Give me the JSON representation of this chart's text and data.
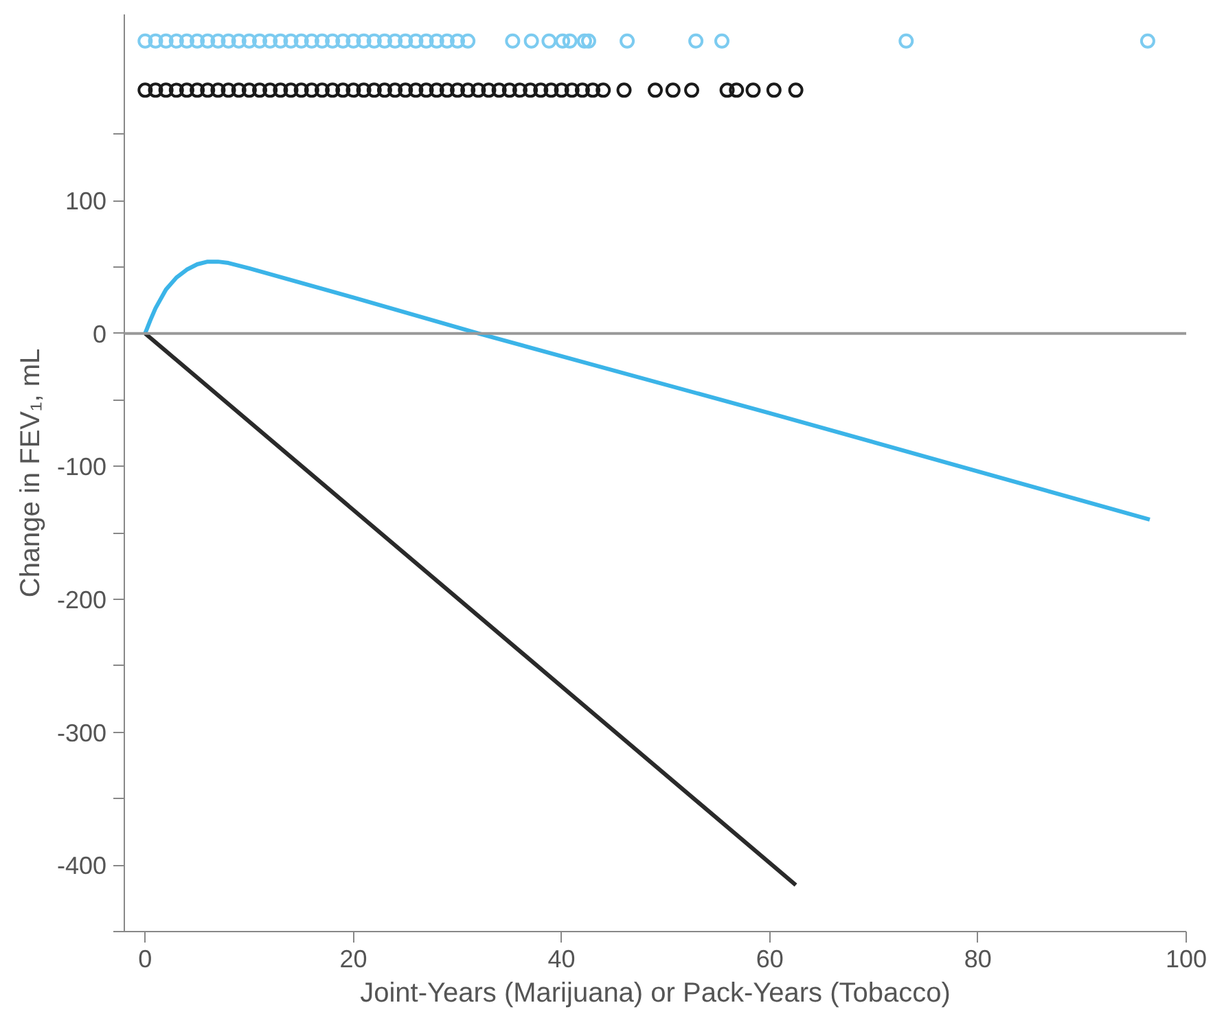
{
  "chart_data": {
    "type": "line",
    "xlabel": "Joint-Years (Marijuana) or Pack-Years (Tobacco)",
    "ylabel": "Change in FEV₁, mL",
    "xlim": [
      -2,
      100
    ],
    "xticks": [
      0,
      20,
      40,
      60,
      80,
      100
    ],
    "ylim": [
      -450,
      240
    ],
    "yticks": [
      {
        "value": -450,
        "label": null
      },
      -400,
      {
        "value": -350,
        "label": null
      },
      -300,
      {
        "value": -250,
        "label": null
      },
      -200,
      {
        "value": -150,
        "label": null
      },
      -100,
      {
        "value": -50,
        "label": null
      },
      0,
      {
        "value": 50,
        "label": null
      },
      100,
      {
        "value": 150,
        "label": null
      }
    ],
    "grid": false,
    "line_style": "solid",
    "ref_lines": [
      {
        "axis": "y",
        "value": 0,
        "color": "#999999"
      }
    ],
    "series": [
      {
        "type": "scatter",
        "marker": "circle",
        "color": "#7ccbf0",
        "x": [
          0,
          1,
          2,
          3,
          4,
          5,
          6,
          7,
          8,
          9,
          10,
          11,
          12,
          13,
          14,
          15,
          16,
          17,
          18,
          19,
          20,
          21,
          22,
          23,
          24,
          25,
          26,
          27,
          28,
          29,
          30,
          31,
          35.3,
          37.1,
          38.8,
          40.1,
          40.8,
          42.2,
          42.6,
          46.3,
          52.9,
          55.4,
          73.1,
          96.3
        ],
        "values": [
          220,
          220,
          220,
          220,
          220,
          220,
          220,
          220,
          220,
          220,
          220,
          220,
          220,
          220,
          220,
          220,
          220,
          220,
          220,
          220,
          220,
          220,
          220,
          220,
          220,
          220,
          220,
          220,
          220,
          220,
          220,
          220,
          220,
          220,
          220,
          220,
          220,
          220,
          220,
          220,
          220,
          220,
          220,
          220
        ]
      },
      {
        "type": "scatter",
        "marker": "circle",
        "color": "#1a1a1a",
        "x": [
          0,
          1,
          2,
          3,
          4,
          5,
          6,
          7,
          8,
          9,
          10,
          11,
          12,
          13,
          14,
          15,
          16,
          17,
          18,
          19,
          20,
          21,
          22,
          23,
          24,
          25,
          26,
          27,
          28,
          29,
          30,
          31,
          32,
          33,
          34,
          35,
          36,
          37,
          38,
          39,
          40,
          41,
          42,
          43,
          44,
          46,
          49,
          50.7,
          52.5,
          55.9,
          56.8,
          58.4,
          60.4,
          62.5
        ],
        "values": [
          183,
          183,
          183,
          183,
          183,
          183,
          183,
          183,
          183,
          183,
          183,
          183,
          183,
          183,
          183,
          183,
          183,
          183,
          183,
          183,
          183,
          183,
          183,
          183,
          183,
          183,
          183,
          183,
          183,
          183,
          183,
          183,
          183,
          183,
          183,
          183,
          183,
          183,
          183,
          183,
          183,
          183,
          183,
          183,
          183,
          183,
          183,
          183,
          183,
          183,
          183,
          183,
          183,
          183
        ]
      },
      {
        "marker": "none",
        "color": "#3bb4e8",
        "x": [
          0,
          0.5,
          1,
          2,
          3,
          4,
          5,
          6,
          7,
          8,
          10,
          20,
          32,
          60,
          96.5
        ],
        "values": [
          0,
          10,
          19,
          33,
          42,
          48,
          52,
          54,
          54,
          53,
          49,
          27,
          0,
          -60,
          -140
        ]
      },
      {
        "marker": "none",
        "color": "#2a2a2a",
        "x": [
          0,
          62.5
        ],
        "values": [
          0,
          -415
        ]
      }
    ]
  }
}
